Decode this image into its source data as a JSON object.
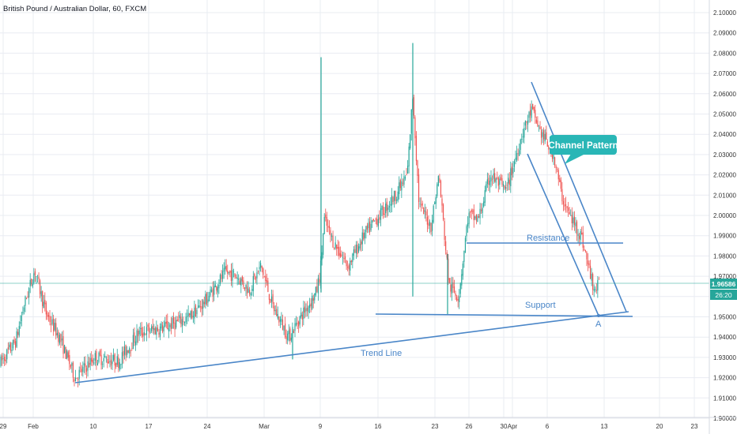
{
  "title": "British Pound / Australian Dollar, 60, FXCM",
  "colors": {
    "up": "#26a69a",
    "down": "#ef5350",
    "drawing": "#4a86c8",
    "callout": "#29b6b6",
    "price_line": "#26a69a",
    "grid": "#e9ecf2",
    "axis_text": "#333333"
  },
  "chart_data": {
    "type": "candlestick",
    "title": "British Pound / Australian Dollar, 60, FXCM",
    "ylim": [
      1.9,
      2.1
    ],
    "y_ticks": [
      "2.10000",
      "2.09000",
      "2.08000",
      "2.07000",
      "2.06000",
      "2.05000",
      "2.04000",
      "2.03000",
      "2.02000",
      "2.01000",
      "2.00000",
      "1.99000",
      "1.98000",
      "1.97000",
      "1.96000",
      "1.95000",
      "1.94000",
      "1.93000",
      "1.92000",
      "1.91000",
      "1.90000"
    ],
    "x_ticks": [
      "29",
      "Feb",
      "10",
      "17",
      "24",
      "Mar",
      "9",
      "16",
      "23",
      "26",
      "30",
      "Apr",
      "6",
      "13",
      "20",
      "23"
    ],
    "current_price": "1.96586",
    "countdown": "26:20",
    "grid": true,
    "price_path": [
      [
        0,
        1.927
      ],
      [
        20,
        1.938
      ],
      [
        30,
        1.955
      ],
      [
        44,
        1.973
      ],
      [
        58,
        1.952
      ],
      [
        75,
        1.94
      ],
      [
        95,
        1.92
      ],
      [
        120,
        1.93
      ],
      [
        150,
        1.928
      ],
      [
        175,
        1.942
      ],
      [
        210,
        1.945
      ],
      [
        240,
        1.95
      ],
      [
        260,
        1.958
      ],
      [
        285,
        1.972
      ],
      [
        300,
        1.97
      ],
      [
        315,
        1.963
      ],
      [
        330,
        1.975
      ],
      [
        345,
        1.955
      ],
      [
        365,
        1.94
      ],
      [
        380,
        1.95
      ],
      [
        400,
        1.962
      ],
      [
        405,
        1.972
      ],
      [
        410,
        1.998
      ],
      [
        420,
        1.988
      ],
      [
        440,
        1.975
      ],
      [
        460,
        1.99
      ],
      [
        480,
        2.0
      ],
      [
        500,
        2.01
      ],
      [
        515,
        2.02
      ],
      [
        522,
        2.06
      ],
      [
        530,
        2.005
      ],
      [
        545,
        1.995
      ],
      [
        555,
        2.02
      ],
      [
        568,
        1.965
      ],
      [
        580,
        1.96
      ],
      [
        592,
        2.0
      ],
      [
        605,
        1.998
      ],
      [
        620,
        2.02
      ],
      [
        640,
        2.012
      ],
      [
        660,
        2.04
      ],
      [
        672,
        2.052
      ],
      [
        685,
        2.04
      ],
      [
        700,
        2.03
      ],
      [
        710,
        2.01
      ],
      [
        720,
        2.0
      ],
      [
        735,
        1.99
      ],
      [
        745,
        1.973
      ],
      [
        752,
        1.963
      ],
      [
        758,
        1.966
      ]
    ],
    "spikes": [
      {
        "x": 406,
        "high": 2.078,
        "low": 1.962
      },
      {
        "x": 522,
        "high": 2.085,
        "low": 1.96
      },
      {
        "x": 566,
        "high": 1.981,
        "low": 1.951
      },
      {
        "x": 370,
        "high": 1.945,
        "low": 1.929
      }
    ],
    "annotations": {
      "channel_label": "Channel Pattern",
      "resistance_label": "Resistance",
      "support_label": "Support",
      "trend_label": "Trend Line",
      "point_label": "A"
    }
  }
}
